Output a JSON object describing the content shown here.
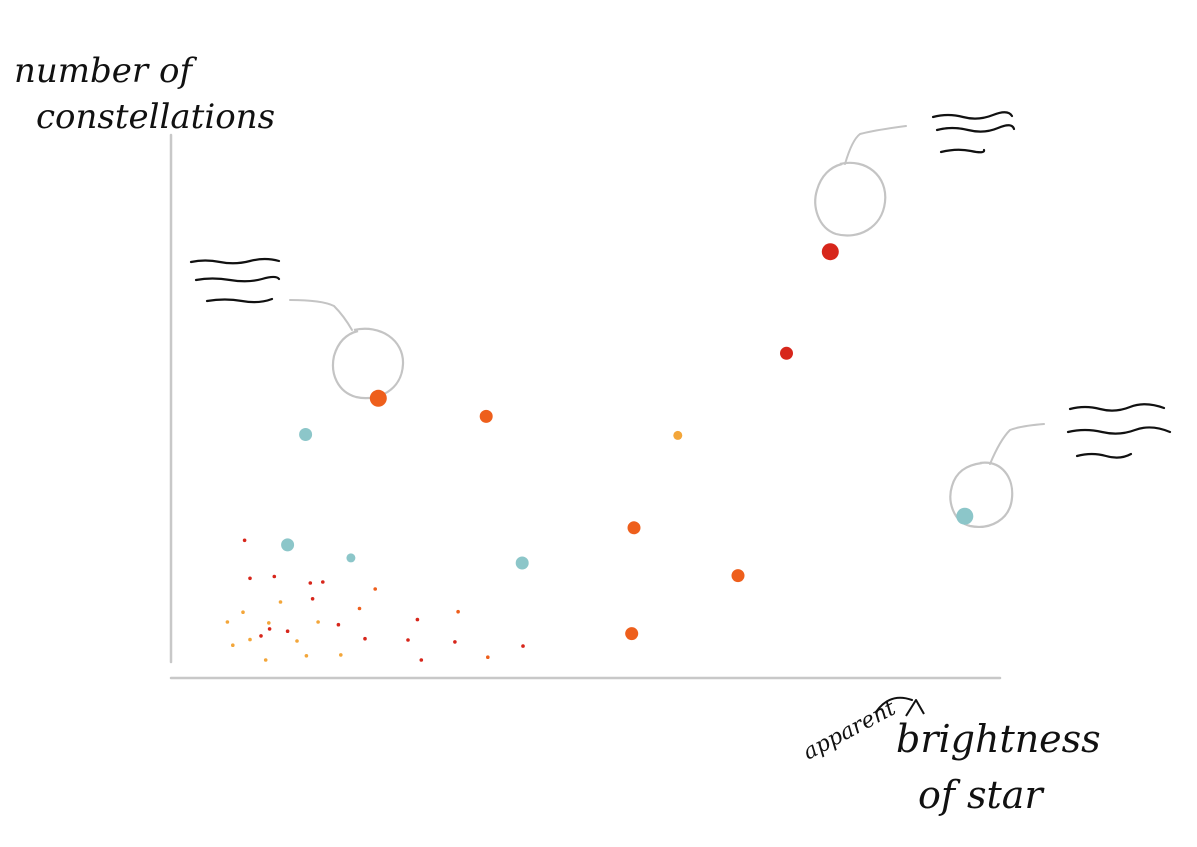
{
  "chart_data": {
    "type": "scatter",
    "title": "",
    "ylabel_lines": [
      "number of",
      "constellations"
    ],
    "xlabel_annotation": "apparent",
    "xlabel_lines": [
      "brightness",
      "of star"
    ],
    "xlim": [
      0,
      100
    ],
    "ylim": [
      0,
      100
    ],
    "grid": false,
    "legend": "none",
    "colors": {
      "red": "#d7261b",
      "orange": "#ee5f1c",
      "yellow": "#f3a63a",
      "teal": "#8cc6c9",
      "axis": "#c8c8c8",
      "ink": "#111111",
      "callout": "#c4c4c4"
    },
    "points": [
      {
        "x": 80.6,
        "y": 88.0,
        "c": "red",
        "s": 3,
        "callout": true
      },
      {
        "x": 22.8,
        "y": 56.4,
        "c": "orange",
        "s": 3,
        "callout": true
      },
      {
        "x": 97.8,
        "y": 31.0,
        "c": "teal",
        "s": 3,
        "callout": true
      },
      {
        "x": 75.0,
        "y": 66.1,
        "c": "red",
        "s": 2
      },
      {
        "x": 36.6,
        "y": 52.5,
        "c": "orange",
        "s": 2
      },
      {
        "x": 61.1,
        "y": 48.4,
        "c": "yellow",
        "s": 1
      },
      {
        "x": 13.5,
        "y": 48.6,
        "c": "teal",
        "s": 2
      },
      {
        "x": 55.5,
        "y": 28.5,
        "c": "orange",
        "s": 2
      },
      {
        "x": 68.8,
        "y": 18.2,
        "c": "orange",
        "s": 2
      },
      {
        "x": 41.2,
        "y": 20.9,
        "c": "teal",
        "s": 2
      },
      {
        "x": 55.2,
        "y": 5.7,
        "c": "orange",
        "s": 2
      },
      {
        "x": 11.2,
        "y": 24.8,
        "c": "teal",
        "s": 2
      },
      {
        "x": 19.3,
        "y": 22.0,
        "c": "teal",
        "s": 1
      },
      {
        "x": 5.7,
        "y": 25.8,
        "c": "red",
        "s": 0
      },
      {
        "x": 6.4,
        "y": 17.6,
        "c": "red",
        "s": 0
      },
      {
        "x": 9.5,
        "y": 18.0,
        "c": "red",
        "s": 0
      },
      {
        "x": 14.1,
        "y": 16.6,
        "c": "red",
        "s": 0
      },
      {
        "x": 15.7,
        "y": 16.8,
        "c": "red",
        "s": 0
      },
      {
        "x": 22.4,
        "y": 15.3,
        "c": "orange",
        "s": 0
      },
      {
        "x": 14.4,
        "y": 13.2,
        "c": "red",
        "s": 0
      },
      {
        "x": 10.3,
        "y": 12.5,
        "c": "yellow",
        "s": 0
      },
      {
        "x": 20.4,
        "y": 11.1,
        "c": "orange",
        "s": 0
      },
      {
        "x": 5.5,
        "y": 10.3,
        "c": "yellow",
        "s": 0
      },
      {
        "x": 3.5,
        "y": 8.2,
        "c": "yellow",
        "s": 0
      },
      {
        "x": 8.8,
        "y": 8.0,
        "c": "yellow",
        "s": 0
      },
      {
        "x": 15.1,
        "y": 8.2,
        "c": "yellow",
        "s": 0
      },
      {
        "x": 17.7,
        "y": 7.6,
        "c": "red",
        "s": 0
      },
      {
        "x": 27.8,
        "y": 8.7,
        "c": "red",
        "s": 0
      },
      {
        "x": 33.0,
        "y": 10.4,
        "c": "orange",
        "s": 0
      },
      {
        "x": 8.9,
        "y": 6.7,
        "c": "red",
        "s": 0
      },
      {
        "x": 11.2,
        "y": 6.2,
        "c": "red",
        "s": 0
      },
      {
        "x": 7.8,
        "y": 5.2,
        "c": "red",
        "s": 0
      },
      {
        "x": 6.4,
        "y": 4.4,
        "c": "yellow",
        "s": 0
      },
      {
        "x": 12.4,
        "y": 4.1,
        "c": "yellow",
        "s": 0
      },
      {
        "x": 21.1,
        "y": 4.6,
        "c": "red",
        "s": 0
      },
      {
        "x": 26.6,
        "y": 4.3,
        "c": "red",
        "s": 0
      },
      {
        "x": 32.6,
        "y": 3.9,
        "c": "red",
        "s": 0
      },
      {
        "x": 4.2,
        "y": 3.2,
        "c": "yellow",
        "s": 0
      },
      {
        "x": 41.3,
        "y": 3.0,
        "c": "red",
        "s": 0
      },
      {
        "x": 13.6,
        "y": 0.9,
        "c": "yellow",
        "s": 0
      },
      {
        "x": 18.0,
        "y": 1.1,
        "c": "yellow",
        "s": 0
      },
      {
        "x": 8.4,
        "y": 0.0,
        "c": "yellow",
        "s": 0
      },
      {
        "x": 28.3,
        "y": 0.0,
        "c": "red",
        "s": 0
      },
      {
        "x": 36.8,
        "y": 0.6,
        "c": "orange",
        "s": 0
      }
    ]
  }
}
